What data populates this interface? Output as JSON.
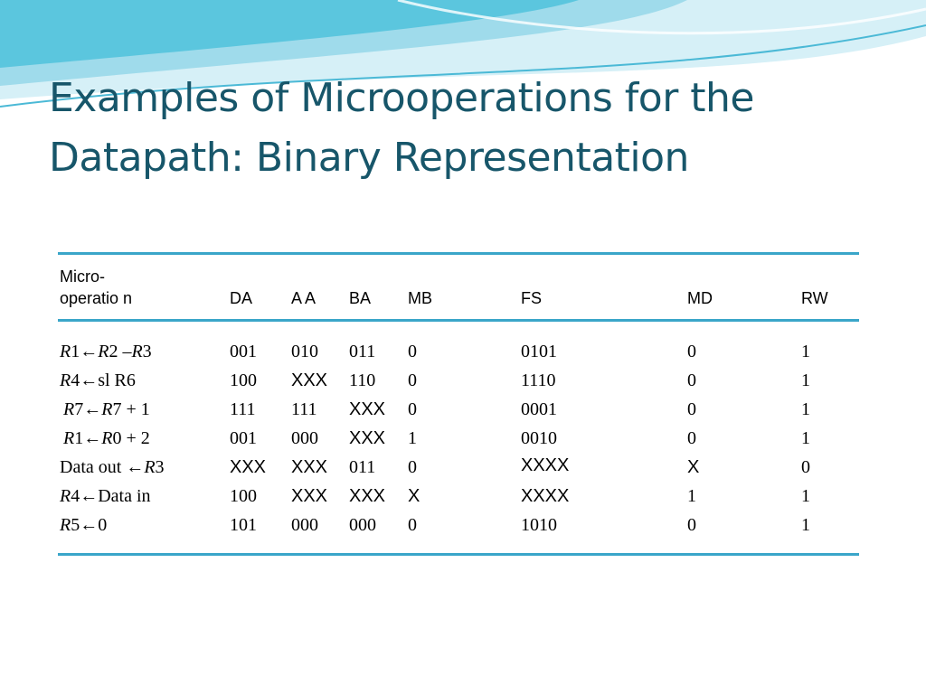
{
  "slide": {
    "title_line1": "Examples of Microoperations for the",
    "title_line2": "Datapath: Binary Representation"
  },
  "table": {
    "headers": {
      "micro_line1": "Micro-",
      "micro_line2": "operatio n",
      "da": "DA",
      "aa": "A A",
      "ba": "BA",
      "mb": "MB",
      "fs": "FS",
      "md": "MD",
      "rw": "RW"
    },
    "rows": [
      {
        "op": {
          "a": "R",
          "b": "1←",
          "c": "R",
          "d": "2 –",
          "e": "R",
          "f": "3"
        },
        "da": "001",
        "aa": "010",
        "ba": "011",
        "mb": "0",
        "fs": "0101",
        "md": "0",
        "rw": "1"
      },
      {
        "op": {
          "a": "R",
          "b": "4←sl R6"
        },
        "da": "100",
        "aa": "XXX",
        "ba": "110",
        "mb": "0",
        "fs": "1110",
        "md": "0",
        "rw": "1"
      },
      {
        "op": {
          "a": "R",
          "b": "7←",
          "c": "R",
          "d": "7 + 1"
        },
        "da": "111",
        "aa": "111",
        "ba": "XXX",
        "mb": "0",
        "fs": "0001",
        "md": "0",
        "rw": "1"
      },
      {
        "op": {
          "a": "R",
          "b": "1←",
          "c": "R",
          "d": "0 + 2"
        },
        "da": "001",
        "aa": "000",
        "ba": "XXX",
        "mb": "1",
        "fs": "0010",
        "md": "0",
        "rw": "1"
      },
      {
        "op": {
          "a": "Data out  ←",
          "b": "R",
          "c": "3"
        },
        "da": "XXX",
        "aa": "XXX",
        "ba": "011",
        "mb": "0",
        "fs": "XXXX",
        "md": "X",
        "rw": "0"
      },
      {
        "op": {
          "a": "R",
          "b": "4←Data in"
        },
        "da": "100",
        "aa": "XXX",
        "ba": "XXX",
        "mb": "X",
        "fs": "XXXX",
        "md": "1",
        "rw": "1"
      },
      {
        "op": {
          "a": "R",
          "b": "5←0"
        },
        "da": "101",
        "aa": "000",
        "ba": "000",
        "mb": "0",
        "fs": "1010",
        "md": "0",
        "rw": "1"
      }
    ]
  },
  "colors": {
    "title": "#17566a",
    "rule": "#3aa6c9",
    "wave_dark": "#5bc6de",
    "wave_light": "#bfe8f2"
  }
}
